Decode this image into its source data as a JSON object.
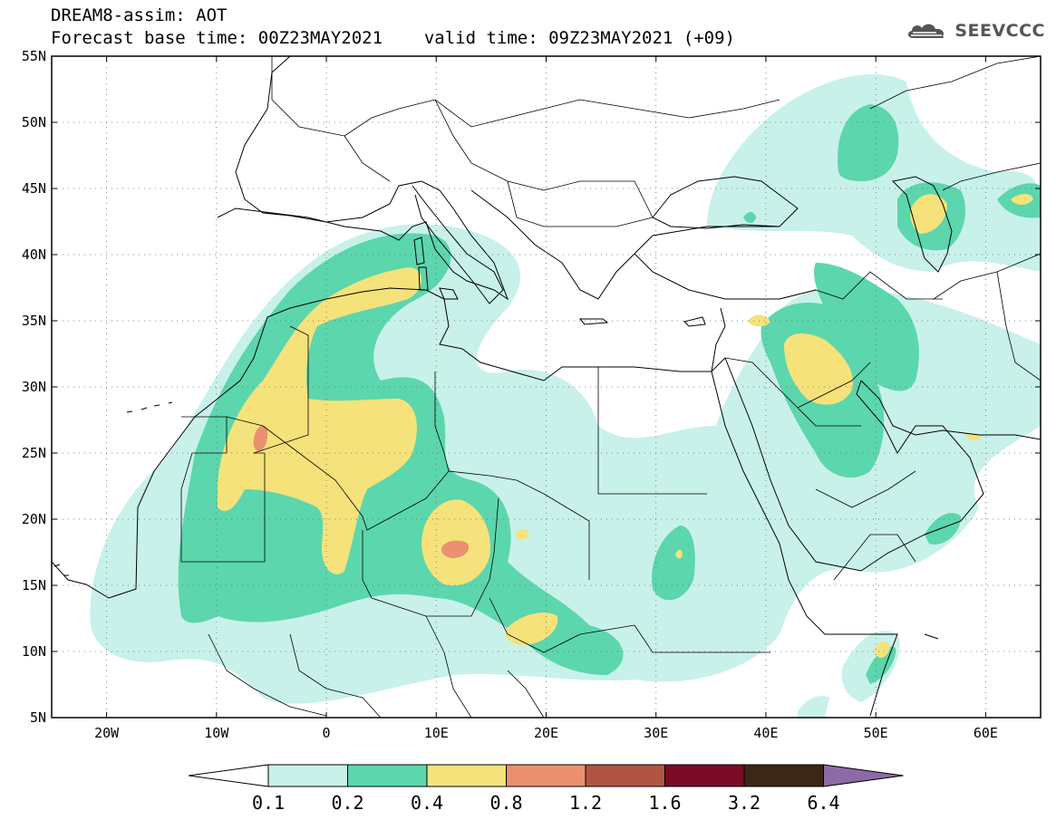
{
  "header": {
    "title": "DREAM8-assim: AOT",
    "base_time": "Forecast base time: 00Z23MAY2021",
    "valid_time": "valid time: 09Z23MAY2021 (+09)"
  },
  "logo": {
    "text": "SEEVCCC",
    "icon": "cloud-icon"
  },
  "map": {
    "projection": "lat-lon",
    "lon_range": [
      -25,
      65
    ],
    "lat_range": [
      5,
      55
    ],
    "lon_ticks": [
      {
        "value": -20,
        "label": "20W"
      },
      {
        "value": -10,
        "label": "10W"
      },
      {
        "value": 0,
        "label": "0"
      },
      {
        "value": 10,
        "label": "10E"
      },
      {
        "value": 20,
        "label": "20E"
      },
      {
        "value": 30,
        "label": "30E"
      },
      {
        "value": 40,
        "label": "40E"
      },
      {
        "value": 50,
        "label": "50E"
      },
      {
        "value": 60,
        "label": "60E"
      }
    ],
    "lat_ticks": [
      {
        "value": 5,
        "label": "5N"
      },
      {
        "value": 10,
        "label": "10N"
      },
      {
        "value": 15,
        "label": "15N"
      },
      {
        "value": 20,
        "label": "20N"
      },
      {
        "value": 25,
        "label": "25N"
      },
      {
        "value": 30,
        "label": "30N"
      },
      {
        "value": 35,
        "label": "35N"
      },
      {
        "value": 40,
        "label": "40N"
      },
      {
        "value": 45,
        "label": "45N"
      },
      {
        "value": 50,
        "label": "50N"
      },
      {
        "value": 55,
        "label": "55N"
      }
    ],
    "grid": "dotted"
  },
  "colorbar": {
    "labels": [
      "0.1",
      "0.2",
      "0.4",
      "0.8",
      "1.2",
      "1.6",
      "3.2",
      "6.4"
    ],
    "colors": [
      "#c8f1ea",
      "#5cd6ad",
      "#f5e27a",
      "#eb9070",
      "#b05544",
      "#7a0a26",
      "#3a2715",
      "#8c6aa6"
    ],
    "under_color": "#ffffff"
  },
  "aot_fields": [
    {
      "level": "0.1-0.2",
      "color": "#c8f1ea",
      "description": "broad low AOT dust plume over N Africa, Arabia, Caspian"
    },
    {
      "level": "0.2-0.4",
      "color": "#5cd6ad"
    },
    {
      "level": "0.4-0.8",
      "color": "#f5e27a"
    },
    {
      "level": "0.8-1.2",
      "color": "#eb9070"
    }
  ]
}
